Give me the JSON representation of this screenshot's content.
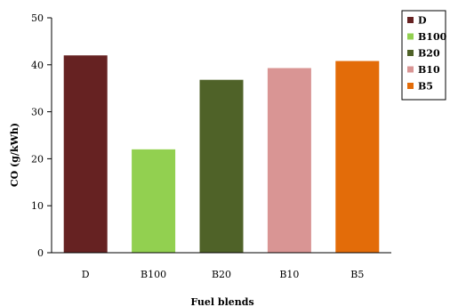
{
  "chart_data": {
    "type": "bar",
    "categories": [
      "D",
      "B100",
      "B20",
      "B10",
      "B5"
    ],
    "values": [
      42,
      22,
      36.8,
      39.3,
      40.8
    ],
    "colors": [
      "#662222",
      "#92d050",
      "#4f6228",
      "#d99594",
      "#e36c09"
    ],
    "xlabel": "Fuel blends",
    "ylabel": "CO (g/kWh)",
    "ylim": [
      0,
      50
    ],
    "yticks": [
      "0",
      "10",
      "20",
      "30",
      "40",
      "50"
    ],
    "grid": false,
    "legend": {
      "position": "right",
      "entries": [
        "D",
        "B100",
        "B20",
        "B10",
        "B5"
      ]
    }
  }
}
